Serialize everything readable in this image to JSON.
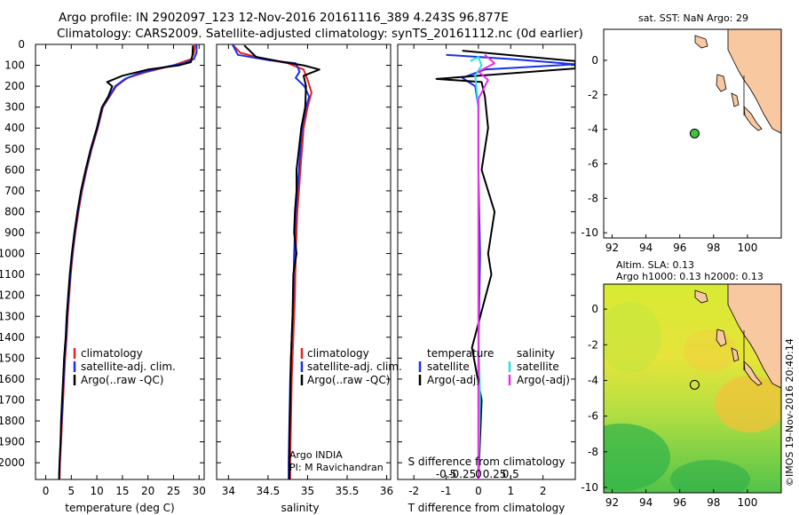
{
  "header": {
    "line1": "Argo profile: IN 2902097_123 12-Nov-2016 20161116_389 4.243S 96.877E",
    "line2": "Climatology: CARS2009. Satellite-adjusted climatology: synTS_20161112.nc (0d earlier)"
  },
  "colors": {
    "clim": "#e8201e",
    "sat": "#1730e8",
    "argo": "#000000",
    "sal_sat": "#28e1e8",
    "sal_argo": "#e830e6",
    "marker": "#41c341",
    "land": "#f8c8a0"
  },
  "chart_data": [
    {
      "type": "line",
      "id": "temperature",
      "xlabel": "temperature (deg C)",
      "ylabel": "",
      "xlim": [
        -2,
        31
      ],
      "ylim": [
        2080,
        0
      ],
      "xticks": [
        0,
        5,
        10,
        15,
        20,
        25,
        30
      ],
      "yticks": [
        0,
        100,
        200,
        300,
        400,
        500,
        600,
        700,
        800,
        900,
        1000,
        1100,
        1200,
        1300,
        1400,
        1500,
        1600,
        1700,
        1800,
        1900,
        2000
      ],
      "legend": [
        "climatology",
        "satellite-adj. clim.",
        "Argo(..raw -QC)"
      ],
      "series": [
        {
          "name": "climatology",
          "color": "#e8201e",
          "points": [
            [
              29.2,
              0
            ],
            [
              29,
              40
            ],
            [
              28.5,
              70
            ],
            [
              25,
              100
            ],
            [
              20,
              130
            ],
            [
              16,
              160
            ],
            [
              13.8,
              200
            ],
            [
              12.5,
              250
            ],
            [
              11.2,
              300
            ],
            [
              10.2,
              400
            ],
            [
              9,
              500
            ],
            [
              8,
              600
            ],
            [
              7.1,
              700
            ],
            [
              6.4,
              800
            ],
            [
              5.8,
              900
            ],
            [
              5.3,
              1000
            ],
            [
              4.9,
              1100
            ],
            [
              4.6,
              1200
            ],
            [
              4.3,
              1300
            ],
            [
              4.1,
              1400
            ],
            [
              3.8,
              1500
            ],
            [
              3.6,
              1600
            ],
            [
              3.4,
              1700
            ],
            [
              3.2,
              1800
            ],
            [
              3,
              1900
            ],
            [
              2.8,
              2000
            ],
            [
              2.7,
              2080
            ]
          ]
        },
        {
          "name": "satellite-adj. clim.",
          "color": "#1730e8",
          "points": [
            [
              29.5,
              0
            ],
            [
              29.5,
              40
            ],
            [
              29,
              70
            ],
            [
              27,
              90
            ],
            [
              23,
              110
            ],
            [
              18,
              140
            ],
            [
              15.5,
              165
            ],
            [
              13.6,
              200
            ],
            [
              12.4,
              250
            ],
            [
              11.1,
              300
            ],
            [
              10.1,
              400
            ],
            [
              8.9,
              500
            ],
            [
              7.9,
              600
            ],
            [
              7,
              700
            ],
            [
              6.3,
              800
            ],
            [
              5.7,
              900
            ],
            [
              5.2,
              1000
            ],
            [
              4.8,
              1100
            ],
            [
              4.5,
              1200
            ],
            [
              4.2,
              1300
            ],
            [
              4,
              1400
            ],
            [
              3.7,
              1500
            ],
            [
              3.5,
              1600
            ],
            [
              3.3,
              1700
            ],
            [
              3.1,
              1800
            ],
            [
              2.9,
              1900
            ],
            [
              2.7,
              2000
            ],
            [
              2.6,
              2080
            ]
          ]
        },
        {
          "name": "Argo(..raw -QC)",
          "color": "#000000",
          "points": [
            [
              28.8,
              5
            ],
            [
              28.7,
              50
            ],
            [
              28.4,
              85
            ],
            [
              26,
              100
            ],
            [
              20,
              120
            ],
            [
              15,
              150
            ],
            [
              12,
              180
            ],
            [
              13,
              200
            ],
            [
              12.2,
              250
            ],
            [
              11,
              300
            ],
            [
              10,
              400
            ],
            [
              8.8,
              500
            ],
            [
              7.8,
              600
            ],
            [
              6.9,
              700
            ],
            [
              6.2,
              800
            ],
            [
              5.6,
              900
            ],
            [
              5.1,
              1000
            ],
            [
              4.7,
              1100
            ],
            [
              4.4,
              1200
            ],
            [
              4.1,
              1300
            ],
            [
              3.9,
              1400
            ],
            [
              3.6,
              1500
            ],
            [
              3.4,
              1600
            ],
            [
              3.2,
              1700
            ],
            [
              3,
              1800
            ],
            [
              2.9,
              1900
            ],
            [
              2.7,
              2000
            ],
            [
              2.6,
              2080
            ]
          ]
        }
      ]
    },
    {
      "type": "line",
      "id": "salinity",
      "xlabel": "salinity",
      "xlim": [
        33.85,
        36.05
      ],
      "ylim": [
        2080,
        0
      ],
      "xticks": [
        34,
        34.5,
        35,
        35.5,
        36
      ],
      "legend": [
        "climatology",
        "satellite-adj. clim.",
        "Argo(..raw -QC)"
      ],
      "annotations": [
        "Argo INDIA",
        "PI: M Ravichandran"
      ],
      "series": [
        {
          "name": "climatology",
          "color": "#e8201e",
          "points": [
            [
              34.05,
              0
            ],
            [
              34.15,
              40
            ],
            [
              34.45,
              70
            ],
            [
              34.75,
              90
            ],
            [
              34.95,
              120
            ],
            [
              35,
              170
            ],
            [
              35.05,
              230
            ],
            [
              35,
              300
            ],
            [
              34.95,
              400
            ],
            [
              34.93,
              500
            ],
            [
              34.91,
              600
            ],
            [
              34.89,
              700
            ],
            [
              34.87,
              800
            ],
            [
              34.86,
              900
            ],
            [
              34.85,
              1000
            ],
            [
              34.84,
              1200
            ],
            [
              34.82,
              1400
            ],
            [
              34.8,
              1600
            ],
            [
              34.79,
              1800
            ],
            [
              34.78,
              2000
            ],
            [
              34.78,
              2080
            ]
          ]
        },
        {
          "name": "satellite-adj. clim.",
          "color": "#1730e8",
          "points": [
            [
              34.05,
              0
            ],
            [
              34.12,
              50
            ],
            [
              34.5,
              75
            ],
            [
              34.85,
              90
            ],
            [
              34.9,
              130
            ],
            [
              34.85,
              160
            ],
            [
              34.96,
              200
            ],
            [
              35.02,
              250
            ],
            [
              34.98,
              300
            ],
            [
              34.93,
              400
            ],
            [
              34.91,
              500
            ],
            [
              34.89,
              600
            ],
            [
              34.87,
              700
            ],
            [
              34.85,
              800
            ],
            [
              34.84,
              900
            ],
            [
              34.83,
              1000
            ],
            [
              34.82,
              1200
            ],
            [
              34.8,
              1400
            ],
            [
              34.78,
              1600
            ],
            [
              34.77,
              1800
            ],
            [
              34.76,
              2000
            ],
            [
              34.76,
              2080
            ]
          ]
        },
        {
          "name": "Argo(..raw -QC)",
          "color": "#000000",
          "points": [
            [
              34.2,
              5
            ],
            [
              34.35,
              60
            ],
            [
              34.7,
              85
            ],
            [
              34.95,
              100
            ],
            [
              35.15,
              120
            ],
            [
              34.95,
              150
            ],
            [
              34.98,
              200
            ],
            [
              34.97,
              300
            ],
            [
              34.92,
              400
            ],
            [
              34.89,
              500
            ],
            [
              34.86,
              600
            ],
            [
              34.86,
              700
            ],
            [
              34.84,
              800
            ],
            [
              34.83,
              900
            ],
            [
              34.86,
              1000
            ],
            [
              34.82,
              1100
            ],
            [
              34.81,
              1300
            ],
            [
              34.79,
              1500
            ],
            [
              34.78,
              1700
            ],
            [
              34.77,
              1900
            ],
            [
              34.77,
              2080
            ]
          ]
        }
      ]
    },
    {
      "type": "line",
      "id": "difference",
      "xlabel": "T difference from climatology",
      "xlabel_top": "S difference from climatology",
      "xlim": [
        -2.5,
        3
      ],
      "ylim": [
        2080,
        0
      ],
      "xticks": [
        -2,
        -1,
        0,
        1,
        2
      ],
      "xticks_top": [
        -0.5,
        -0.25,
        0,
        0.25,
        0.5
      ],
      "legend_left_title": "temperature",
      "legend_right_title": "salinity",
      "legend": [
        "satellite",
        "Argo(-adj)",
        "satellite",
        "Argo(-adj)"
      ],
      "series": [
        {
          "name": "T satellite",
          "color": "#1730e8",
          "points": [
            [
              -1,
              50
            ],
            [
              1,
              70
            ],
            [
              3,
              95
            ],
            [
              0.2,
              120
            ],
            [
              -0.5,
              160
            ],
            [
              -0.1,
              200
            ],
            [
              0,
              300
            ],
            [
              0,
              600
            ],
            [
              0.05,
              1000
            ],
            [
              0,
              1500
            ],
            [
              0,
              2080
            ]
          ]
        },
        {
          "name": "T Argo(-adj)",
          "color": "#000000",
          "points": [
            [
              -0.5,
              30
            ],
            [
              3,
              80
            ],
            [
              3,
              115
            ],
            [
              -1.3,
              165
            ],
            [
              0.1,
              180
            ],
            [
              0.2,
              250
            ],
            [
              0.3,
              400
            ],
            [
              0.1,
              600
            ],
            [
              0.5,
              800
            ],
            [
              0.3,
              1000
            ],
            [
              0.4,
              1100
            ],
            [
              -0.2,
              1450
            ],
            [
              0.1,
              1700
            ],
            [
              0,
              2080
            ]
          ]
        },
        {
          "name": "S satellite",
          "color": "#28e1e8",
          "points": [
            [
              -0.25,
              80
            ],
            [
              0,
              60
            ],
            [
              0.1,
              100
            ],
            [
              -0.1,
              150
            ],
            [
              0,
              300
            ],
            [
              0,
              900
            ],
            [
              0,
              1300
            ],
            [
              0.05,
              1700
            ],
            [
              0,
              2080
            ]
          ]
        },
        {
          "name": "S Argo(-adj)",
          "color": "#e830e6",
          "points": [
            [
              0.2,
              50
            ],
            [
              0.5,
              90
            ],
            [
              0,
              130
            ],
            [
              0.3,
              170
            ],
            [
              0,
              260
            ],
            [
              0,
              900
            ],
            [
              0,
              1800
            ],
            [
              0,
              2080
            ]
          ]
        }
      ]
    },
    {
      "type": "scatter",
      "id": "sst-map",
      "title": "sat. SST: NaN Argo: 29",
      "xlim": [
        91.5,
        102
      ],
      "ylim": [
        -10.3,
        1.8
      ],
      "xticks": [
        92,
        94,
        96,
        98,
        100
      ],
      "yticks": [
        0,
        -2,
        -4,
        -6,
        -8,
        -10
      ],
      "point": {
        "lon": 96.877,
        "lat": -4.243
      }
    },
    {
      "type": "heatmap",
      "id": "sla-map",
      "title_line1": "Altim. SLA: 0.13",
      "title_line2": "Argo h1000: 0.13 h2000: 0.13",
      "xlim": [
        91.5,
        102
      ],
      "ylim": [
        -10.3,
        1.4
      ],
      "xticks": [
        92,
        94,
        96,
        98,
        100
      ],
      "yticks": [
        0,
        -2,
        -4,
        -6,
        -8,
        -10
      ],
      "point": {
        "lon": 96.877,
        "lat": -4.243
      }
    }
  ],
  "footer": {
    "credit": "©IMOS 19-Nov-2016 20:40:14"
  }
}
